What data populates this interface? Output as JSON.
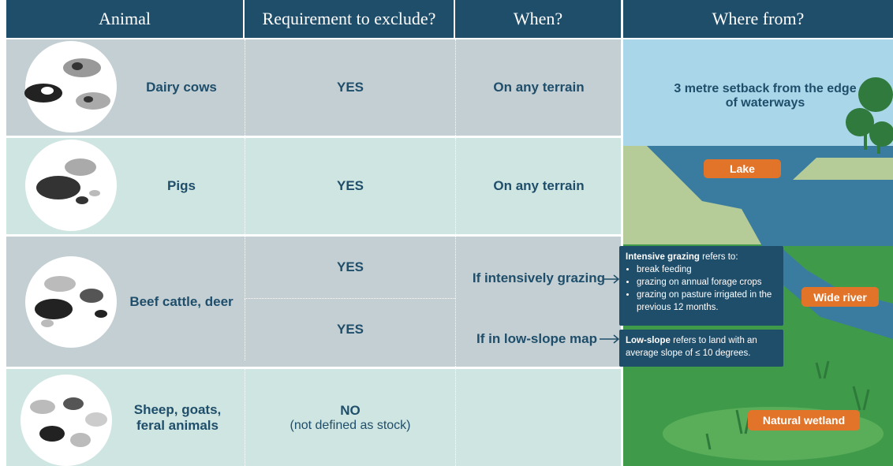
{
  "header": {
    "columns": [
      "Animal",
      "Requirement to exclude?",
      "When?",
      "Where from?"
    ]
  },
  "rows": [
    {
      "animal": "Dairy cows",
      "requirement": "YES",
      "when": "On any terrain"
    },
    {
      "animal": "Pigs",
      "requirement": "YES",
      "when": "On any terrain"
    },
    {
      "animal": "Beef cattle, deer",
      "cases": [
        {
          "requirement": "YES",
          "when": "If intensively grazing"
        },
        {
          "requirement": "YES",
          "when": "If in low-slope map"
        }
      ]
    },
    {
      "animal": "Sheep, goats, feral animals",
      "requirement": "NO",
      "requirement_note": "(not defined as stock)"
    }
  ],
  "where_from": {
    "setback": "3 metre setback from the edge of waterways",
    "labels": {
      "lake": "Lake",
      "river": "Wide river",
      "wetland": "Natural wetland"
    }
  },
  "notes": {
    "intensive": {
      "term": "Intensive grazing",
      "text": "refers to:",
      "items": [
        "break feeding",
        "grazing on annual forage crops",
        "grazing on pasture irrigated in the previous 12 months."
      ]
    },
    "low_slope": {
      "term": "Low-slope",
      "text": "refers to land with an average slope of ≤ 10 degrees."
    }
  }
}
